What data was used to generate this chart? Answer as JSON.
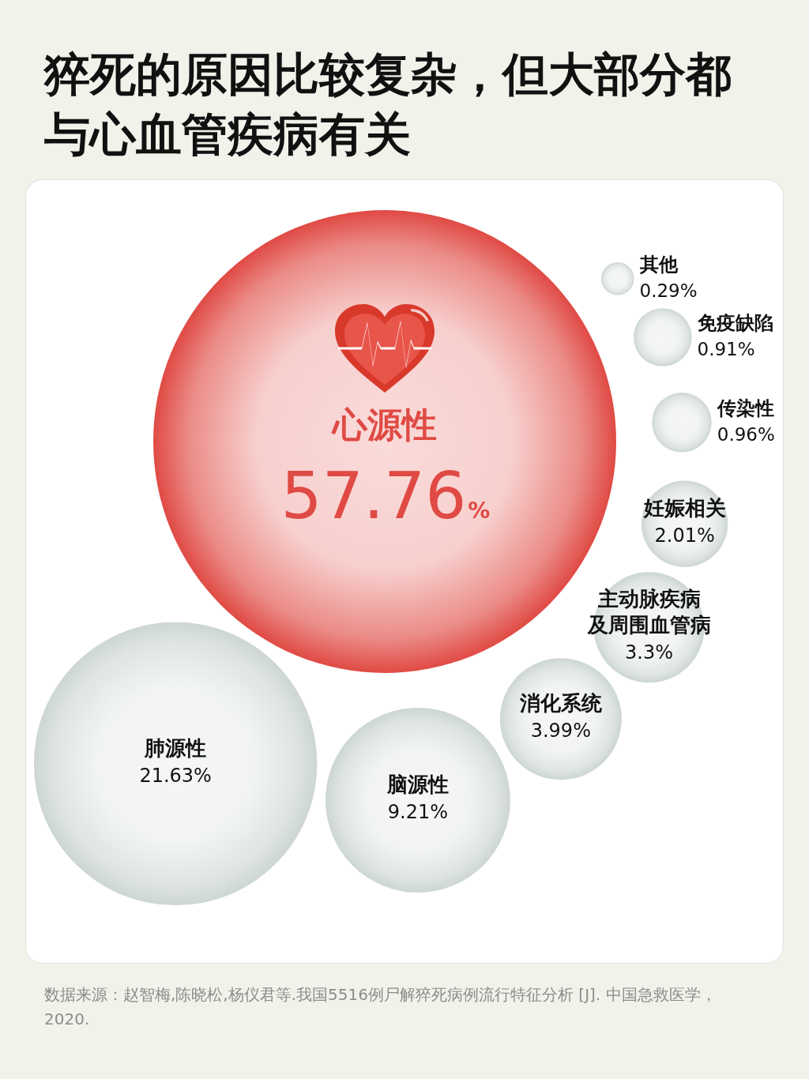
{
  "chart_data": {
    "type": "other",
    "title": "猝死的原因比较复杂，但大部分都与心血管疾病有关",
    "categories": [
      "心源性",
      "肺源性",
      "脑源性",
      "消化系统",
      "主动脉疾病及周围血管病",
      "妊娠相关",
      "传染性",
      "免疫缺陷",
      "其他"
    ],
    "values": [
      57.76,
      21.63,
      9.21,
      3.99,
      3.3,
      2.01,
      0.96,
      0.91,
      0.29
    ],
    "value_labels": [
      "57.76%",
      "21.63%",
      "9.21%",
      "3.99%",
      "3.3%",
      "2.01%",
      "0.96%",
      "0.91%",
      "0.29%"
    ],
    "colors": [
      "#e04a44",
      "#cdd6d5",
      "#cdd6d5",
      "#cdd6d5",
      "#cdd6d5",
      "#cdd6d5",
      "#cdd6d5",
      "#cdd6d5",
      "#cdd6d5"
    ],
    "annotations": [
      "数据来源：赵智梅,陈晓松,杨仪君等.我国5516例尸解猝死病例流行特征分析 [J]. 中国急救医学，2020."
    ]
  }
}
